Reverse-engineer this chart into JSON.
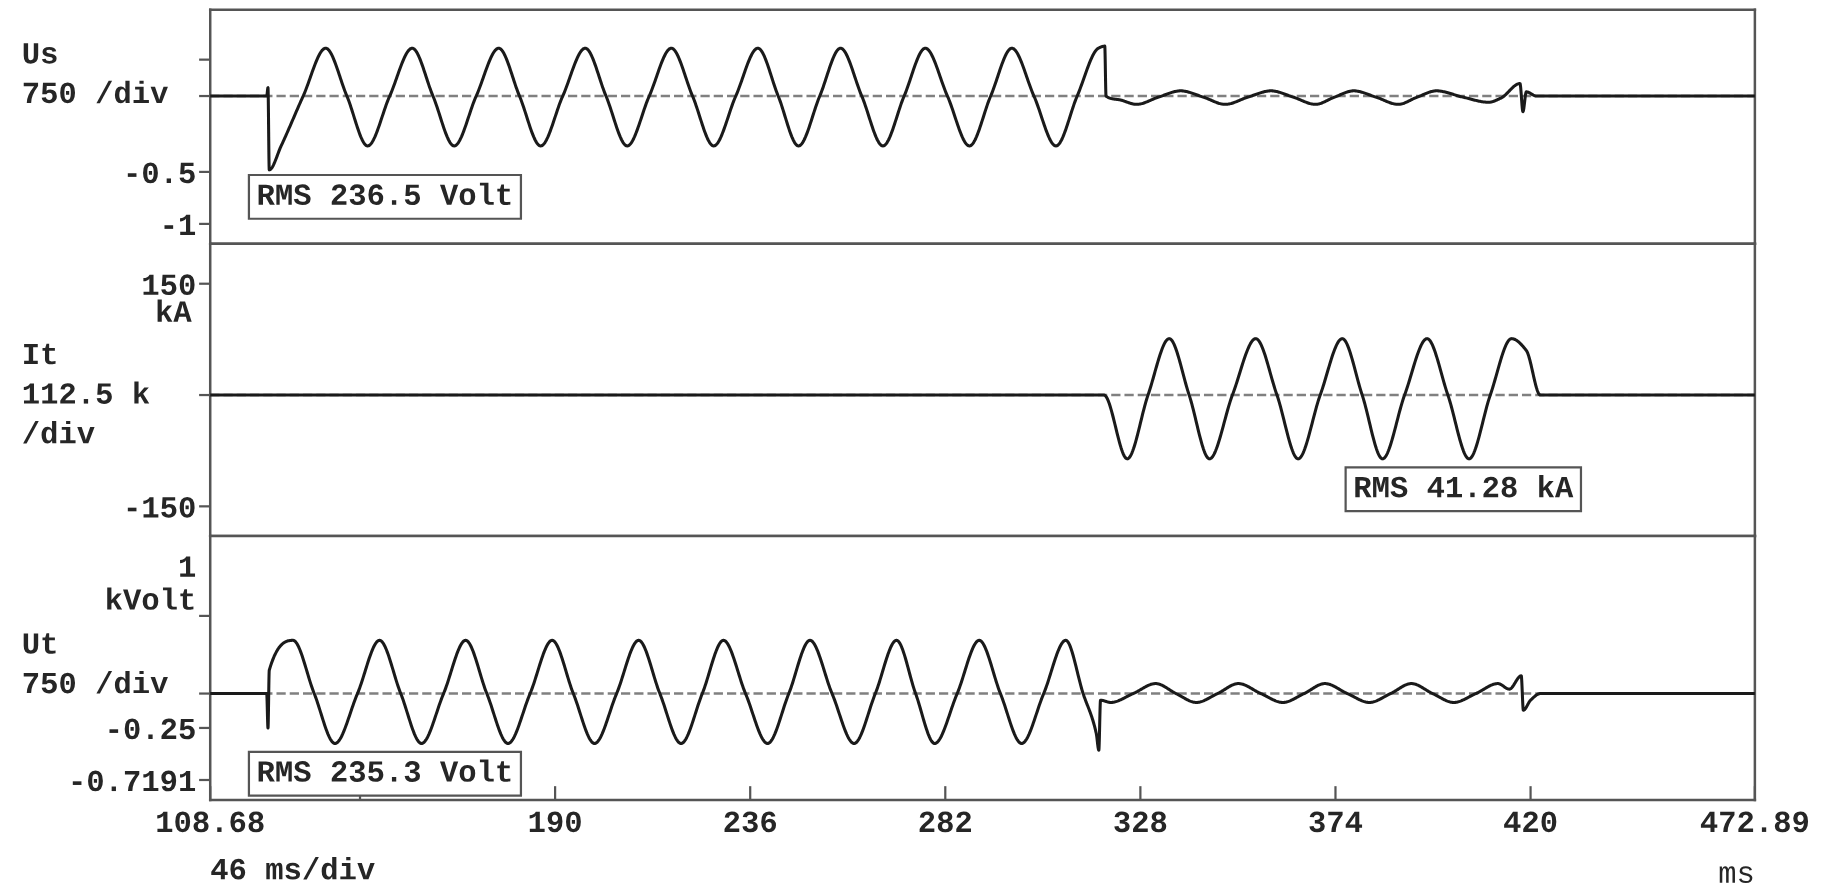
{
  "chart_data": [
    {
      "type": "line",
      "ylabel": "Us\n750 /div",
      "xlim": [
        108.68,
        472.89
      ],
      "ylim": [
        -1.19,
        1.06
      ],
      "yticks": [
        -1,
        -0.5,
        {
          "value": 0.23,
          "label": null
        },
        {
          "value": 0.58,
          "label": null
        }
      ],
      "tick_labels": "y",
      "grid": false,
      "legend": false,
      "line_style": "solid",
      "marker": "none",
      "ref_lines": [
        {
          "axis": "y",
          "value": 0.23,
          "color": "#808080",
          "line_style": "dashed"
        }
      ],
      "annotations": [
        "RMS 236.5 Volt"
      ],
      "series": [
        {
          "color": "#1a1a1a",
          "x": [
            108.68,
            122.0,
            122.3,
            122.6,
            125.4,
            130.6,
            135.9,
            140.9,
            145.8,
            151.0,
            156.3,
            161.2,
            166.2,
            171.4,
            176.7,
            181.6,
            186.6,
            191.8,
            197.1,
            202.0,
            207.0,
            212.2,
            217.4,
            222.4,
            227.4,
            232.6,
            237.8,
            242.6,
            247.4,
            252.4,
            257.3,
            262.3,
            267.3,
            272.3,
            277.3,
            282.5,
            287.7,
            292.7,
            297.7,
            302.9,
            308.1,
            313.1,
            318.1,
            319.6,
            319.9,
            323.5,
            327.1,
            332.3,
            337.5,
            342.8,
            348.0,
            353.4,
            358.8,
            364.0,
            369.3,
            373.8,
            378.3,
            383.5,
            388.8,
            393.3,
            397.8,
            404.0,
            410.1,
            413.0,
            417.5,
            418.2,
            419.0,
            421.4,
            472.89
          ],
          "values": [
            0.23,
            0.23,
            0.31,
            -0.48,
            -0.25,
            0.23,
            0.69,
            0.23,
            -0.25,
            0.23,
            0.69,
            0.23,
            -0.25,
            0.23,
            0.69,
            0.23,
            -0.25,
            0.23,
            0.69,
            0.23,
            -0.25,
            0.23,
            0.69,
            0.23,
            -0.25,
            0.23,
            0.69,
            0.23,
            -0.25,
            0.23,
            0.69,
            0.23,
            -0.25,
            0.23,
            0.69,
            0.23,
            -0.25,
            0.23,
            0.69,
            0.23,
            -0.25,
            0.23,
            0.69,
            0.71,
            0.23,
            0.19,
            0.15,
            0.22,
            0.28,
            0.22,
            0.15,
            0.22,
            0.28,
            0.22,
            0.15,
            0.22,
            0.28,
            0.22,
            0.15,
            0.22,
            0.28,
            0.22,
            0.17,
            0.21,
            0.35,
            0.08,
            0.27,
            0.23,
            0.23
          ]
        }
      ]
    },
    {
      "type": "line",
      "ylabel": "It\n112.5 k\n/div",
      "xlim": [
        108.68,
        472.89
      ],
      "ylim": [
        -190,
        204
      ],
      "yticks": [
        -150,
        {
          "value": 0,
          "label": null
        },
        150
      ],
      "tick_labels": "y",
      "grid": false,
      "legend": false,
      "line_style": "solid",
      "marker": "none",
      "ref_lines": [
        {
          "axis": "y",
          "value": 0,
          "color": "#808080",
          "line_style": "dashed"
        }
      ],
      "annotations": [
        "kA",
        "RMS 41.28 kA"
      ],
      "series": [
        {
          "color": "#1a1a1a",
          "x": [
            108.68,
            319.4,
            324.9,
            329.8,
            334.8,
            339.5,
            344.3,
            349.7,
            355.2,
            360.2,
            365.2,
            370.4,
            375.6,
            380.3,
            385.1,
            390.3,
            395.6,
            400.5,
            405.5,
            410.5,
            415.5,
            419.0,
            422.3,
            472.89
          ],
          "values": [
            0,
            0,
            -86,
            0,
            76,
            0,
            -86,
            0,
            76,
            0,
            -86,
            0,
            76,
            0,
            -86,
            0,
            76,
            0,
            -86,
            0,
            76,
            60,
            0,
            0
          ]
        }
      ]
    },
    {
      "type": "line",
      "ylabel": "Ut\n750 /div",
      "xlabel": "ms",
      "xlim": [
        108.68,
        472.89
      ],
      "ylim": [
        -0.9,
        1.48
      ],
      "yticks": [
        -0.7191,
        -0.25,
        {
          "value": 0.06,
          "label": null
        },
        {
          "value": 0.76,
          "label": "1\nkVolt"
        }
      ],
      "xticks": [
        108.68,
        {
          "value": 144,
          "label": null
        },
        190,
        236,
        282,
        328,
        374,
        420,
        472.89
      ],
      "grid": false,
      "legend": false,
      "line_style": "solid",
      "marker": "none",
      "ref_lines": [
        {
          "axis": "y",
          "value": 0.06,
          "color": "#808080",
          "line_style": "dashed"
        }
      ],
      "annotations": [
        "RMS 235.3 Volt",
        "46 ms/div"
      ],
      "series": [
        {
          "color": "#1a1a1a",
          "x": [
            108.68,
            122.0,
            122.3,
            122.6,
            128.2,
            133.2,
            138.1,
            143.4,
            148.6,
            153.6,
            158.5,
            163.7,
            168.9,
            173.9,
            178.9,
            184.1,
            189.3,
            194.3,
            199.3,
            204.5,
            209.7,
            214.7,
            219.7,
            224.7,
            229.7,
            234.9,
            240.1,
            245.1,
            250.1,
            255.3,
            260.5,
            265.5,
            270.5,
            275.0,
            279.5,
            284.8,
            290.0,
            295.0,
            300.0,
            305.2,
            310.4,
            314.5,
            317.6,
            318.2,
            318.6,
            321.0,
            326.3,
            331.6,
            336.4,
            341.2,
            346.2,
            351.1,
            356.4,
            361.6,
            366.6,
            371.5,
            376.8,
            382.0,
            387.0,
            391.9,
            396.9,
            401.9,
            407.1,
            412.3,
            415.0,
            417.8,
            418.3,
            420.0,
            422.3,
            472.89
          ],
          "values": [
            0.06,
            0.06,
            -0.25,
            0.27,
            0.54,
            0.06,
            -0.39,
            0.06,
            0.54,
            0.06,
            -0.39,
            0.06,
            0.54,
            0.06,
            -0.39,
            0.06,
            0.54,
            0.06,
            -0.39,
            0.06,
            0.54,
            0.06,
            -0.39,
            0.06,
            0.54,
            0.06,
            -0.39,
            0.06,
            0.54,
            0.06,
            -0.39,
            0.06,
            0.54,
            0.06,
            -0.39,
            0.06,
            0.54,
            0.06,
            -0.39,
            0.06,
            0.54,
            0.06,
            -0.3,
            -0.45,
            0.0,
            -0.02,
            0.06,
            0.15,
            0.06,
            -0.02,
            0.06,
            0.15,
            0.06,
            -0.02,
            0.06,
            0.15,
            0.06,
            -0.02,
            0.06,
            0.15,
            0.06,
            -0.02,
            0.06,
            0.15,
            0.1,
            0.22,
            -0.09,
            0.0,
            0.06,
            0.06
          ]
        }
      ]
    }
  ]
}
